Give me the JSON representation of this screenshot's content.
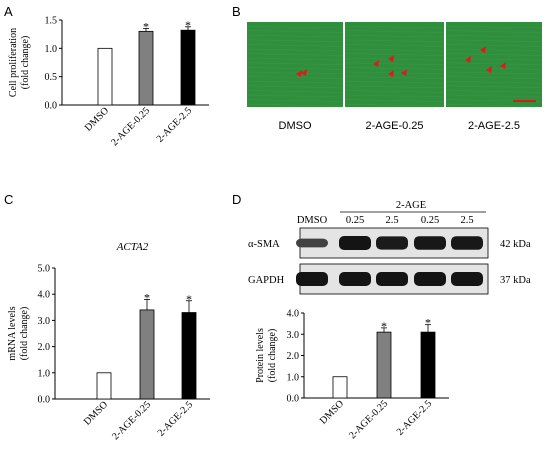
{
  "panels": {
    "A": "A",
    "B": "B",
    "C": "C",
    "D": "D"
  },
  "micrographs": {
    "captions": [
      "DMSO",
      "2-AGE-0.25",
      "2-AGE-2.5"
    ],
    "background_color": "#2f8f3c",
    "arrow_color": "#e8141e",
    "scale_bar_color": "#d71920"
  },
  "western_blot": {
    "group_label": "2-AGE",
    "lanes": [
      "DMSO",
      "0.25",
      "2.5",
      "0.25",
      "2.5"
    ],
    "rows": [
      {
        "protein": "α-SMA",
        "size": "42 kDa",
        "intensity": [
          0.35,
          1,
          0.9,
          0.95,
          0.95
        ]
      },
      {
        "protein": "GAPDH",
        "size": "37 kDa",
        "intensity": [
          1,
          1,
          1,
          1,
          1
        ]
      }
    ]
  },
  "chart_data": [
    {
      "id": "A",
      "type": "bar",
      "categories": [
        "DMSO",
        "2-AGE-0.25",
        "2-AGE-2.5"
      ],
      "values": [
        1.0,
        1.3,
        1.32
      ],
      "errors": [
        0,
        0.05,
        0.06
      ],
      "significance": [
        "",
        "*",
        "*"
      ],
      "ylabel": "Cell proliferation (fold change)",
      "ylim": [
        0,
        1.5
      ],
      "yticks": [
        "0.0",
        "0.5",
        "1.0",
        "1.5"
      ],
      "fills": [
        "#ffffff",
        "#808080",
        "#000000"
      ]
    },
    {
      "id": "C",
      "type": "bar",
      "title": "ACTA2",
      "categories": [
        "DMSO",
        "2-AGE-0.25",
        "2-AGE-2.5"
      ],
      "values": [
        1.0,
        3.4,
        3.3
      ],
      "errors": [
        0,
        0.4,
        0.45
      ],
      "significance": [
        "",
        "*",
        "*"
      ],
      "ylabel": "mRNA levels  (fold change)",
      "ylim": [
        0,
        5
      ],
      "yticks": [
        "0.0",
        "1.0",
        "2.0",
        "3.0",
        "4.0",
        "5.0"
      ],
      "fills": [
        "#ffffff",
        "#808080",
        "#000000"
      ]
    },
    {
      "id": "D",
      "type": "bar",
      "categories": [
        "DMSO",
        "2-AGE-0.25",
        "2-AGE-2.5"
      ],
      "values": [
        1.0,
        3.1,
        3.1
      ],
      "errors": [
        0,
        0.2,
        0.35
      ],
      "significance": [
        "",
        "*",
        "*"
      ],
      "ylabel": "Protein levels (fold change)",
      "ylim": [
        0,
        4
      ],
      "yticks": [
        "0.0",
        "1.0",
        "2.0",
        "3.0",
        "4.0"
      ],
      "fills": [
        "#ffffff",
        "#808080",
        "#000000"
      ]
    }
  ]
}
